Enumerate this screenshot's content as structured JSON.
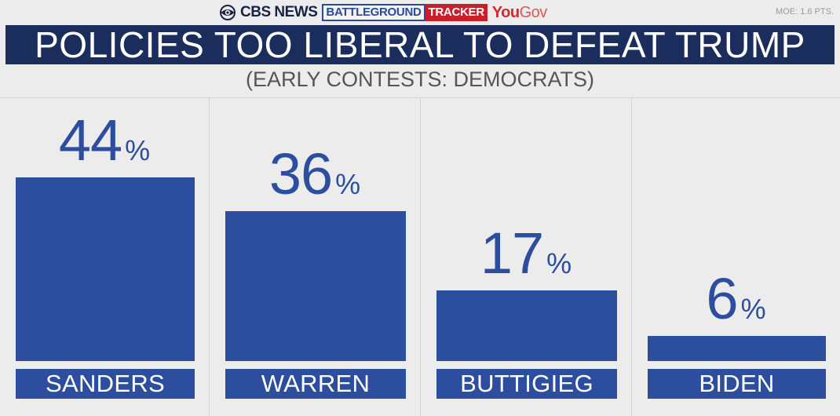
{
  "header": {
    "cbs": "CBS NEWS",
    "battleground": "BATTLEGROUND",
    "tracker": "TRACKER",
    "yougov_you": "You",
    "yougov_gov": "Gov",
    "moe": "MOE: 1.6 PTS."
  },
  "colors": {
    "bar": "#2d4d9e",
    "title_bg": "#1b2d5c",
    "tracker_red": "#c8202a"
  },
  "chart_data": {
    "type": "bar",
    "title": "POLICIES TOO LIBERAL TO DEFEAT TRUMP",
    "subtitle": "(EARLY CONTESTS: DEMOCRATS)",
    "categories": [
      "SANDERS",
      "WARREN",
      "BUTTIGIEG",
      "BIDEN"
    ],
    "values": [
      44,
      36,
      17,
      6
    ],
    "unit": "%",
    "ylim": [
      0,
      44
    ],
    "grid": false
  }
}
